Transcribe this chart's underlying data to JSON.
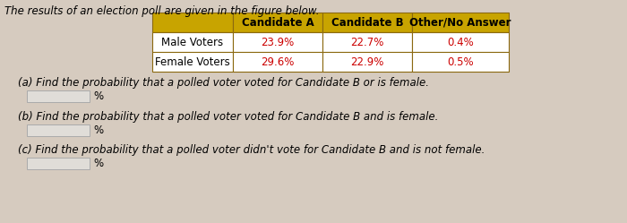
{
  "title_text": "The results of an election poll are given in the figure below.",
  "col_headers": [
    "Candidate A",
    "Candidate B",
    "Other/No Answer"
  ],
  "row_headers": [
    "Male Voters",
    "Female Voters"
  ],
  "values": [
    [
      "23.9%",
      "22.7%",
      "0.4%"
    ],
    [
      "29.6%",
      "22.9%",
      "0.5%"
    ]
  ],
  "value_color": "#cc0000",
  "header_bg": "#c8a400",
  "border_color": "#8B6910",
  "question_a": "(a) Find the probability that a polled voter voted for Candidate B or is female.",
  "question_b": "(b) Find the probability that a polled voter voted for Candidate B and is female.",
  "question_c": "(c) Find the probability that a polled voter didn't vote for Candidate B and is not female.",
  "bg_color": "#d6cbbf",
  "font_size_q": 8.5,
  "font_size_table": 8.5
}
